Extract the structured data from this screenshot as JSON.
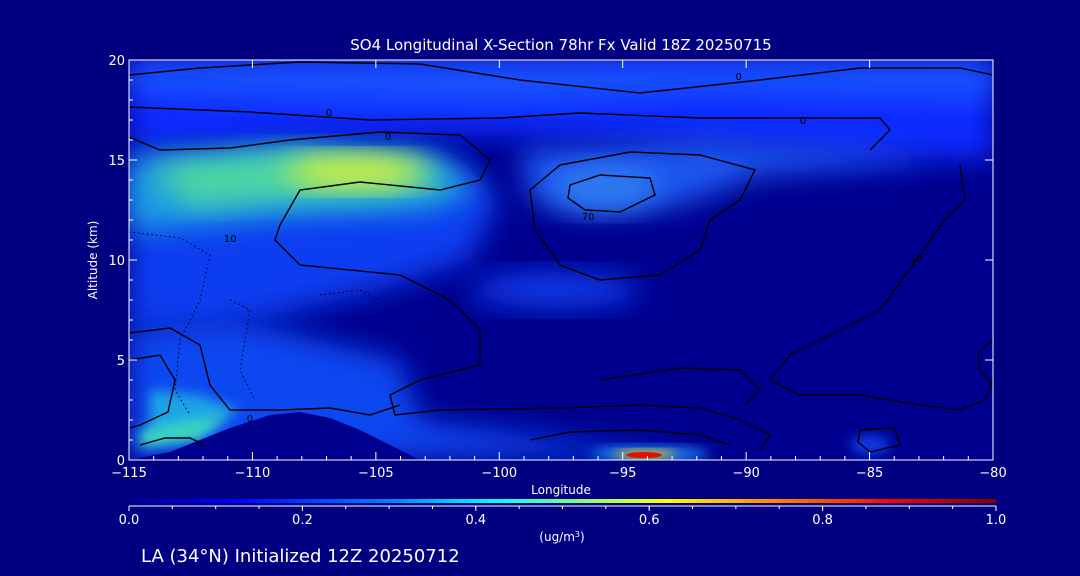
{
  "chart_data": {
    "type": "heatmap",
    "title": "SO4 Longitudinal X-Section 78hr  Fx Valid 18Z 20250715",
    "xlabel": "Longitude",
    "ylabel": "Altitude (km)",
    "xlim": [
      -115,
      -80
    ],
    "ylim": [
      0,
      20
    ],
    "x_ticks": [
      -115,
      -110,
      -105,
      -100,
      -95,
      -90,
      -85,
      -80
    ],
    "x_tick_labels": [
      "−115",
      "−110",
      "−105",
      "−100",
      "−95",
      "−90",
      "−85",
      "−80"
    ],
    "y_ticks": [
      0,
      5,
      10,
      15,
      20
    ],
    "y_tick_labels": [
      "0",
      "5",
      "10",
      "15",
      "20"
    ],
    "colorbar": {
      "ticks": [
        0.0,
        0.2,
        0.4,
        0.6,
        0.8,
        1.0
      ],
      "tick_labels": [
        "0.0",
        "0.2",
        "0.4",
        "0.6",
        "0.8",
        "1.0"
      ],
      "units_label": "(ug/m",
      "units_exp": "3",
      "units_close": ")",
      "colormap": [
        "#00008f",
        "#0000ff",
        "#0080ff",
        "#00ffff",
        "#80ff80",
        "#ffff00",
        "#ff8000",
        "#ff0000",
        "#800000"
      ]
    },
    "concentration_regions": [
      {
        "lon": -109,
        "alt": 14.3,
        "value": 0.45
      },
      {
        "lon": -106.5,
        "alt": 14.2,
        "value": 0.58
      },
      {
        "lon": -104,
        "alt": 14.5,
        "value": 0.5
      },
      {
        "lon": -110,
        "alt": 12.5,
        "value": 0.3
      },
      {
        "lon": -96.5,
        "alt": 13.4,
        "value": 0.28
      },
      {
        "lon": -95.5,
        "alt": 8.5,
        "value": 0.18
      },
      {
        "lon": -112,
        "alt": 1.5,
        "value": 0.32
      },
      {
        "lon": -94.5,
        "alt": 0.15,
        "value": 0.9
      },
      {
        "lon": -98,
        "alt": 18,
        "value": 0.12
      }
    ],
    "contour_labels": [
      {
        "text": "0",
        "lon": -106.9,
        "alt": 17.4
      },
      {
        "text": "0",
        "lon": -104.5,
        "alt": 16.2
      },
      {
        "text": "0",
        "lon": -90.3,
        "alt": 19.2
      },
      {
        "text": "0",
        "lon": -87.7,
        "alt": 17.0
      },
      {
        "text": "70",
        "lon": -96.4,
        "alt": 12.2
      },
      {
        "text": "10",
        "lon": -110.9,
        "alt": 11.1
      },
      {
        "text": "10",
        "lon": -83.1,
        "alt": 10.1
      },
      {
        "text": "0",
        "lon": -110.1,
        "alt": 2.1
      }
    ],
    "grid": false
  },
  "footer": {
    "text": "LA (34°N) Initialized 12Z 20250712"
  }
}
